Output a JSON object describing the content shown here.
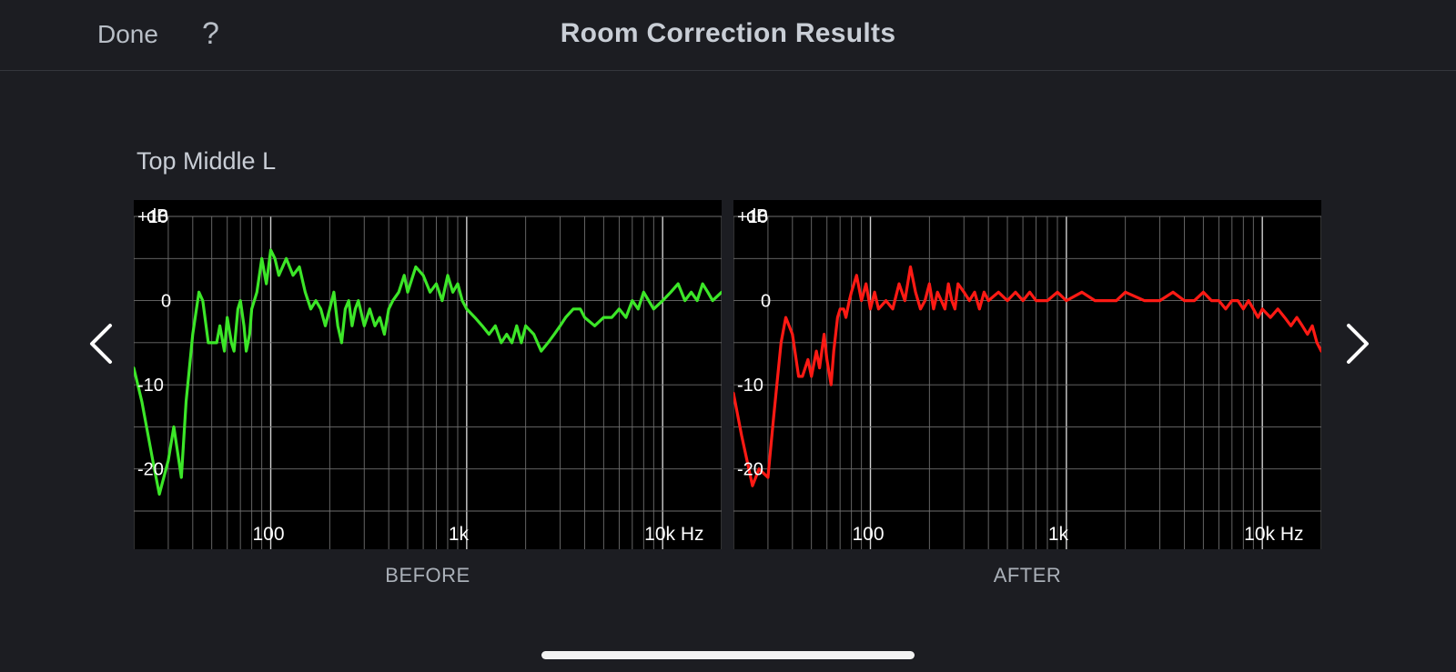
{
  "header": {
    "done_label": "Done",
    "help_label": "?",
    "title": "Room Correction Results"
  },
  "speaker": {
    "name": "Top Middle L"
  },
  "navigation": {
    "previous_icon": "chevron-left-icon",
    "next_icon": "chevron-right-icon"
  },
  "colors": {
    "before_line": "#3ce628",
    "after_line": "#ff1a14",
    "background": "#1c1d22",
    "plot_bg": "#000000",
    "grid": "#7a7a7a"
  },
  "chart_data": [
    {
      "type": "line",
      "caption": "BEFORE",
      "ylabel": "dB",
      "xscale": "log",
      "xlim": [
        20,
        20000
      ],
      "ylim": [
        -25,
        10
      ],
      "y_ticks": [
        {
          "value": 10,
          "label": "+10"
        },
        {
          "value": 0,
          "label": "0"
        },
        {
          "value": -10,
          "label": "-10"
        },
        {
          "value": -20,
          "label": "-20"
        }
      ],
      "x_ticks": [
        {
          "value": 100,
          "label": "100"
        },
        {
          "value": 1000,
          "label": "1k"
        },
        {
          "value": 10000,
          "label": "10k Hz"
        }
      ],
      "grid": true,
      "series": [
        {
          "color": "#3ce628",
          "x": [
            20,
            22,
            25,
            27,
            30,
            32,
            35,
            37,
            40,
            43,
            45,
            48,
            50,
            53,
            55,
            58,
            60,
            63,
            65,
            68,
            70,
            73,
            75,
            78,
            80,
            85,
            90,
            95,
            100,
            105,
            110,
            120,
            130,
            140,
            150,
            160,
            170,
            180,
            190,
            200,
            210,
            220,
            230,
            240,
            250,
            260,
            270,
            280,
            300,
            320,
            340,
            360,
            380,
            400,
            420,
            450,
            480,
            500,
            550,
            600,
            650,
            700,
            750,
            800,
            850,
            900,
            950,
            1000,
            1100,
            1200,
            1300,
            1400,
            1500,
            1600,
            1700,
            1800,
            1900,
            2000,
            2200,
            2400,
            2600,
            2800,
            3000,
            3200,
            3500,
            3800,
            4000,
            4500,
            5000,
            5500,
            6000,
            6500,
            7000,
            7500,
            8000,
            9000,
            10000,
            11000,
            12000,
            13000,
            14000,
            15000,
            16000,
            17000,
            18000,
            20000
          ],
          "y": [
            -8,
            -12,
            -19,
            -23,
            -19,
            -15,
            -21,
            -12,
            -4,
            1,
            0,
            -5,
            -5,
            -5,
            -3,
            -6,
            -2,
            -5,
            -6,
            -1,
            0,
            -3,
            -6,
            -4,
            -1,
            1,
            5,
            2,
            6,
            5,
            3,
            5,
            3,
            4,
            1,
            -1,
            0,
            -1,
            -3,
            -1,
            1,
            -3,
            -5,
            -1,
            0,
            -3,
            -1,
            0,
            -3,
            -1,
            -3,
            -2,
            -4,
            -1,
            0,
            1,
            3,
            1,
            4,
            3,
            1,
            2,
            0,
            3,
            1,
            2,
            0,
            -1,
            -2,
            -3,
            -4,
            -3,
            -5,
            -4,
            -5,
            -3,
            -5,
            -3,
            -4,
            -6,
            -5,
            -4,
            -3,
            -2,
            -1,
            -1,
            -2,
            -3,
            -2,
            -2,
            -1,
            -2,
            0,
            -1,
            1,
            -1,
            0,
            1,
            2,
            0,
            1,
            0,
            2,
            1,
            0,
            1
          ]
        }
      ]
    },
    {
      "type": "line",
      "caption": "AFTER",
      "ylabel": "dB",
      "xscale": "log",
      "xlim": [
        20,
        20000
      ],
      "ylim": [
        -25,
        10
      ],
      "y_ticks": [
        {
          "value": 10,
          "label": "+10"
        },
        {
          "value": 0,
          "label": "0"
        },
        {
          "value": -10,
          "label": "-10"
        },
        {
          "value": -20,
          "label": "-20"
        }
      ],
      "x_ticks": [
        {
          "value": 100,
          "label": "100"
        },
        {
          "value": 1000,
          "label": "1k"
        },
        {
          "value": 10000,
          "label": "10k Hz"
        }
      ],
      "grid": true,
      "series": [
        {
          "color": "#ff1a14",
          "x": [
            20,
            22,
            25,
            27,
            30,
            32,
            35,
            37,
            40,
            43,
            45,
            48,
            50,
            53,
            55,
            58,
            60,
            63,
            65,
            68,
            70,
            73,
            75,
            78,
            80,
            85,
            90,
            95,
            100,
            105,
            110,
            120,
            130,
            140,
            150,
            160,
            170,
            180,
            190,
            200,
            210,
            220,
            230,
            240,
            250,
            260,
            270,
            280,
            300,
            320,
            340,
            360,
            380,
            400,
            450,
            500,
            550,
            600,
            650,
            700,
            800,
            900,
            1000,
            1200,
            1400,
            1600,
            1800,
            2000,
            2500,
            3000,
            3500,
            4000,
            4500,
            5000,
            5500,
            6000,
            6500,
            7000,
            7500,
            8000,
            8500,
            9000,
            9500,
            10000,
            11000,
            12000,
            13000,
            14000,
            15000,
            16000,
            17000,
            18000,
            19000,
            20000
          ],
          "y": [
            -11,
            -16,
            -22,
            -20,
            -21,
            -14,
            -5,
            -2,
            -4,
            -9,
            -9,
            -7,
            -9,
            -6,
            -8,
            -4,
            -7,
            -10,
            -6,
            -2,
            -1,
            -1,
            -2,
            0,
            1,
            3,
            0,
            2,
            -1,
            1,
            -1,
            0,
            -1,
            2,
            0,
            4,
            1,
            -1,
            0,
            2,
            -1,
            1,
            0,
            -1,
            2,
            0,
            -1,
            2,
            1,
            0,
            1,
            -1,
            1,
            0,
            1,
            0,
            1,
            0,
            1,
            0,
            0,
            1,
            0,
            1,
            0,
            0,
            0,
            1,
            0,
            0,
            1,
            0,
            0,
            1,
            0,
            0,
            -1,
            0,
            0,
            -1,
            0,
            -1,
            -2,
            -1,
            -2,
            -1,
            -2,
            -3,
            -2,
            -3,
            -4,
            -3,
            -5,
            -6
          ]
        }
      ]
    }
  ]
}
